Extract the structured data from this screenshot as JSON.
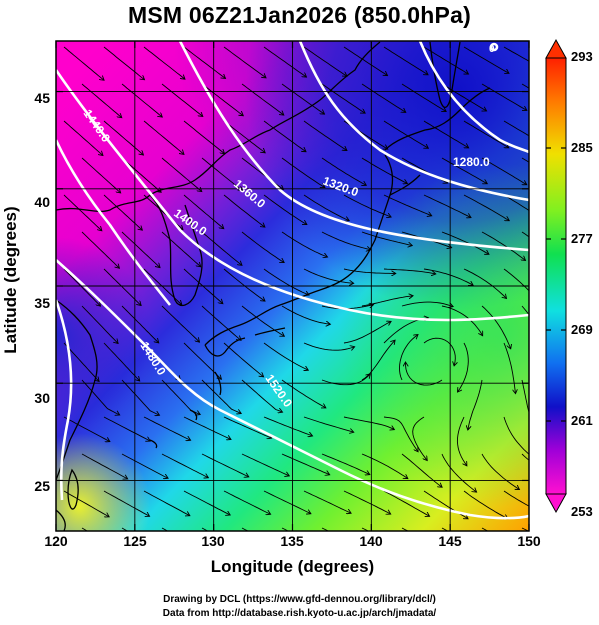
{
  "title": "MSM 06Z21Jan2026 (850.0hPa)",
  "xlabel": "Longitude (degrees)",
  "ylabel": "Latitude  (degrees)",
  "credit_line1": "Drawing by DCL (https://www.gfd-dennou.org/library/dcl/)",
  "credit_line2": "Data from http://database.rish.kyoto-u.ac.jp/arch/jmadata/",
  "chart_data": {
    "type": "heatmap",
    "x_ticks": [
      "120",
      "125",
      "130",
      "135",
      "140",
      "145",
      "150"
    ],
    "y_ticks": [
      "25",
      "30",
      "35",
      "40",
      "45"
    ],
    "x_range": [
      120,
      150
    ],
    "y_range": [
      22.4,
      47.6
    ],
    "colorbar": {
      "labels": [
        "293",
        "285",
        "277",
        "269",
        "261",
        "253"
      ],
      "range": [
        253,
        293
      ]
    },
    "contour_labels": [
      "1280.0",
      "1320.0",
      "1360.0",
      "1400.0",
      "1440.0",
      "1480.0",
      "1520.0",
      "0"
    ],
    "grid": true
  }
}
